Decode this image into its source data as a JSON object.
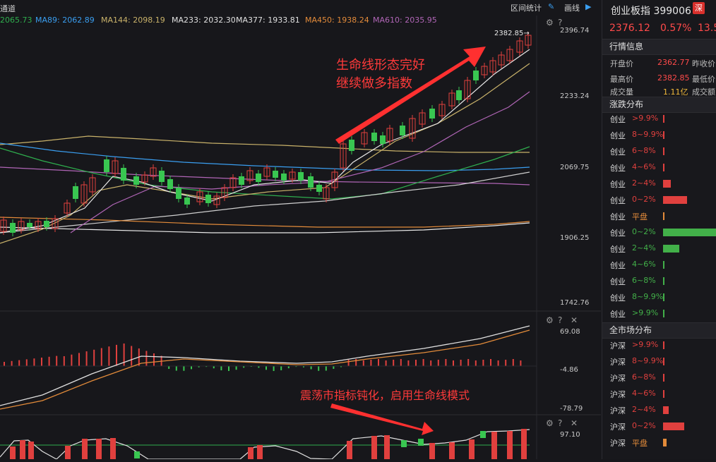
{
  "top_bar": {
    "channel_label": "通道",
    "ma": [
      {
        "text": "2065.73",
        "color": "#2fae4e"
      },
      {
        "text": "MA89: 2062.89",
        "color": "#3a9ef0"
      },
      {
        "text": "MA144: 2098.19",
        "color": "#c9b26a"
      },
      {
        "text": "MA233: 2032.30",
        "color": "#e0e0e0"
      },
      {
        "text": "MA377: 1933.81",
        "color": "#e0e0e0"
      },
      {
        "text": "MA450: 1938.24",
        "color": "#e38b3a"
      },
      {
        "text": "MA610: 2035.95",
        "color": "#b065b6"
      }
    ],
    "range_stats_label": "区间统计",
    "draw_label": "画线"
  },
  "main_chart": {
    "high_marker": "2382.85",
    "y_ticks": [
      "2396.74",
      "2233.24",
      "2069.75",
      "1906.25",
      "1742.76"
    ],
    "annotation_line1": "生命线形态完好",
    "annotation_line2": "继续做多指数"
  },
  "macd_panel": {
    "y_ticks": [
      "69.08",
      "-4.86",
      "-78.79"
    ],
    "annotation": "震荡市指标钝化，启用生命线模式"
  },
  "third_panel": {
    "y_ticks": [
      "97.10"
    ]
  },
  "chart_data": {
    "type": "candlestick",
    "title": "创业板指 399006",
    "ylim": [
      1742.76,
      2396.74
    ],
    "y_ticks": [
      2396.74,
      2233.24,
      2069.75,
      1906.25,
      1742.76
    ],
    "high": 2382.85,
    "last": 2376.12,
    "ma_values": {
      "MA89": 2062.89,
      "MA144": 2098.19,
      "MA233": 2032.3,
      "MA377": 1933.81,
      "MA450": 1938.24,
      "MA610": 2035.95
    }
  },
  "right_panel": {
    "index_name": "创业板指 399006",
    "exchange_badge": "深",
    "price": "2376.12",
    "change_pct": "0.57%",
    "change_amt": "13.5",
    "quote_section_title": "行情信息",
    "open_label": "开盘价",
    "open_value": "2362.77",
    "prev_close_label": "昨收价",
    "high_label": "最高价",
    "high_value": "2382.85",
    "low_label": "最低价",
    "volume_label": "成交量",
    "volume_value": "1.11亿",
    "amount_label": "成交额",
    "cyb_section_title": "涨跌分布",
    "cyb_rows": [
      {
        "label": "创业",
        "range": ">9.9%",
        "pct": 0.01,
        "color": "#e0403e"
      },
      {
        "label": "创业",
        "range": "8~9.9%",
        "pct": 0.01,
        "color": "#e0403e"
      },
      {
        "label": "创业",
        "range": "6~8%",
        "pct": 0.01,
        "color": "#e0403e"
      },
      {
        "label": "创业",
        "range": "4~6%",
        "pct": 0.01,
        "color": "#e0403e"
      },
      {
        "label": "创业",
        "range": "2~4%",
        "pct": 0.14,
        "color": "#e0403e"
      },
      {
        "label": "创业",
        "range": "0~2%",
        "pct": 0.45,
        "color": "#e0403e"
      },
      {
        "label": "创业",
        "range": "平盘",
        "pct": 0.03,
        "color": "#e38b3a"
      },
      {
        "label": "创业",
        "range": "0~2%",
        "pct": 1.0,
        "color": "#42b049"
      },
      {
        "label": "创业",
        "range": "2~4%",
        "pct": 0.3,
        "color": "#42b049"
      },
      {
        "label": "创业",
        "range": "4~6%",
        "pct": 0.02,
        "color": "#42b049"
      },
      {
        "label": "创业",
        "range": "6~8%",
        "pct": 0.01,
        "color": "#42b049"
      },
      {
        "label": "创业",
        "range": "8~9.9%",
        "pct": 0.01,
        "color": "#42b049"
      },
      {
        "label": "创业",
        "range": ">9.9%",
        "pct": 0.01,
        "color": "#42b049"
      }
    ],
    "all_section_title": "全市场分布",
    "all_rows": [
      {
        "label": "沪深",
        "range": ">9.9%",
        "pct": 0.01,
        "color": "#e0403e"
      },
      {
        "label": "沪深",
        "range": "8~9.9%",
        "pct": 0.01,
        "color": "#e0403e"
      },
      {
        "label": "沪深",
        "range": "6~8%",
        "pct": 0.01,
        "color": "#e0403e"
      },
      {
        "label": "沪深",
        "range": "4~6%",
        "pct": 0.01,
        "color": "#e0403e"
      },
      {
        "label": "沪深",
        "range": "2~4%",
        "pct": 0.1,
        "color": "#e0403e"
      },
      {
        "label": "沪深",
        "range": "0~2%",
        "pct": 0.4,
        "color": "#e0403e"
      },
      {
        "label": "沪深",
        "range": "平盘",
        "pct": 0.06,
        "color": "#e38b3a"
      }
    ]
  }
}
